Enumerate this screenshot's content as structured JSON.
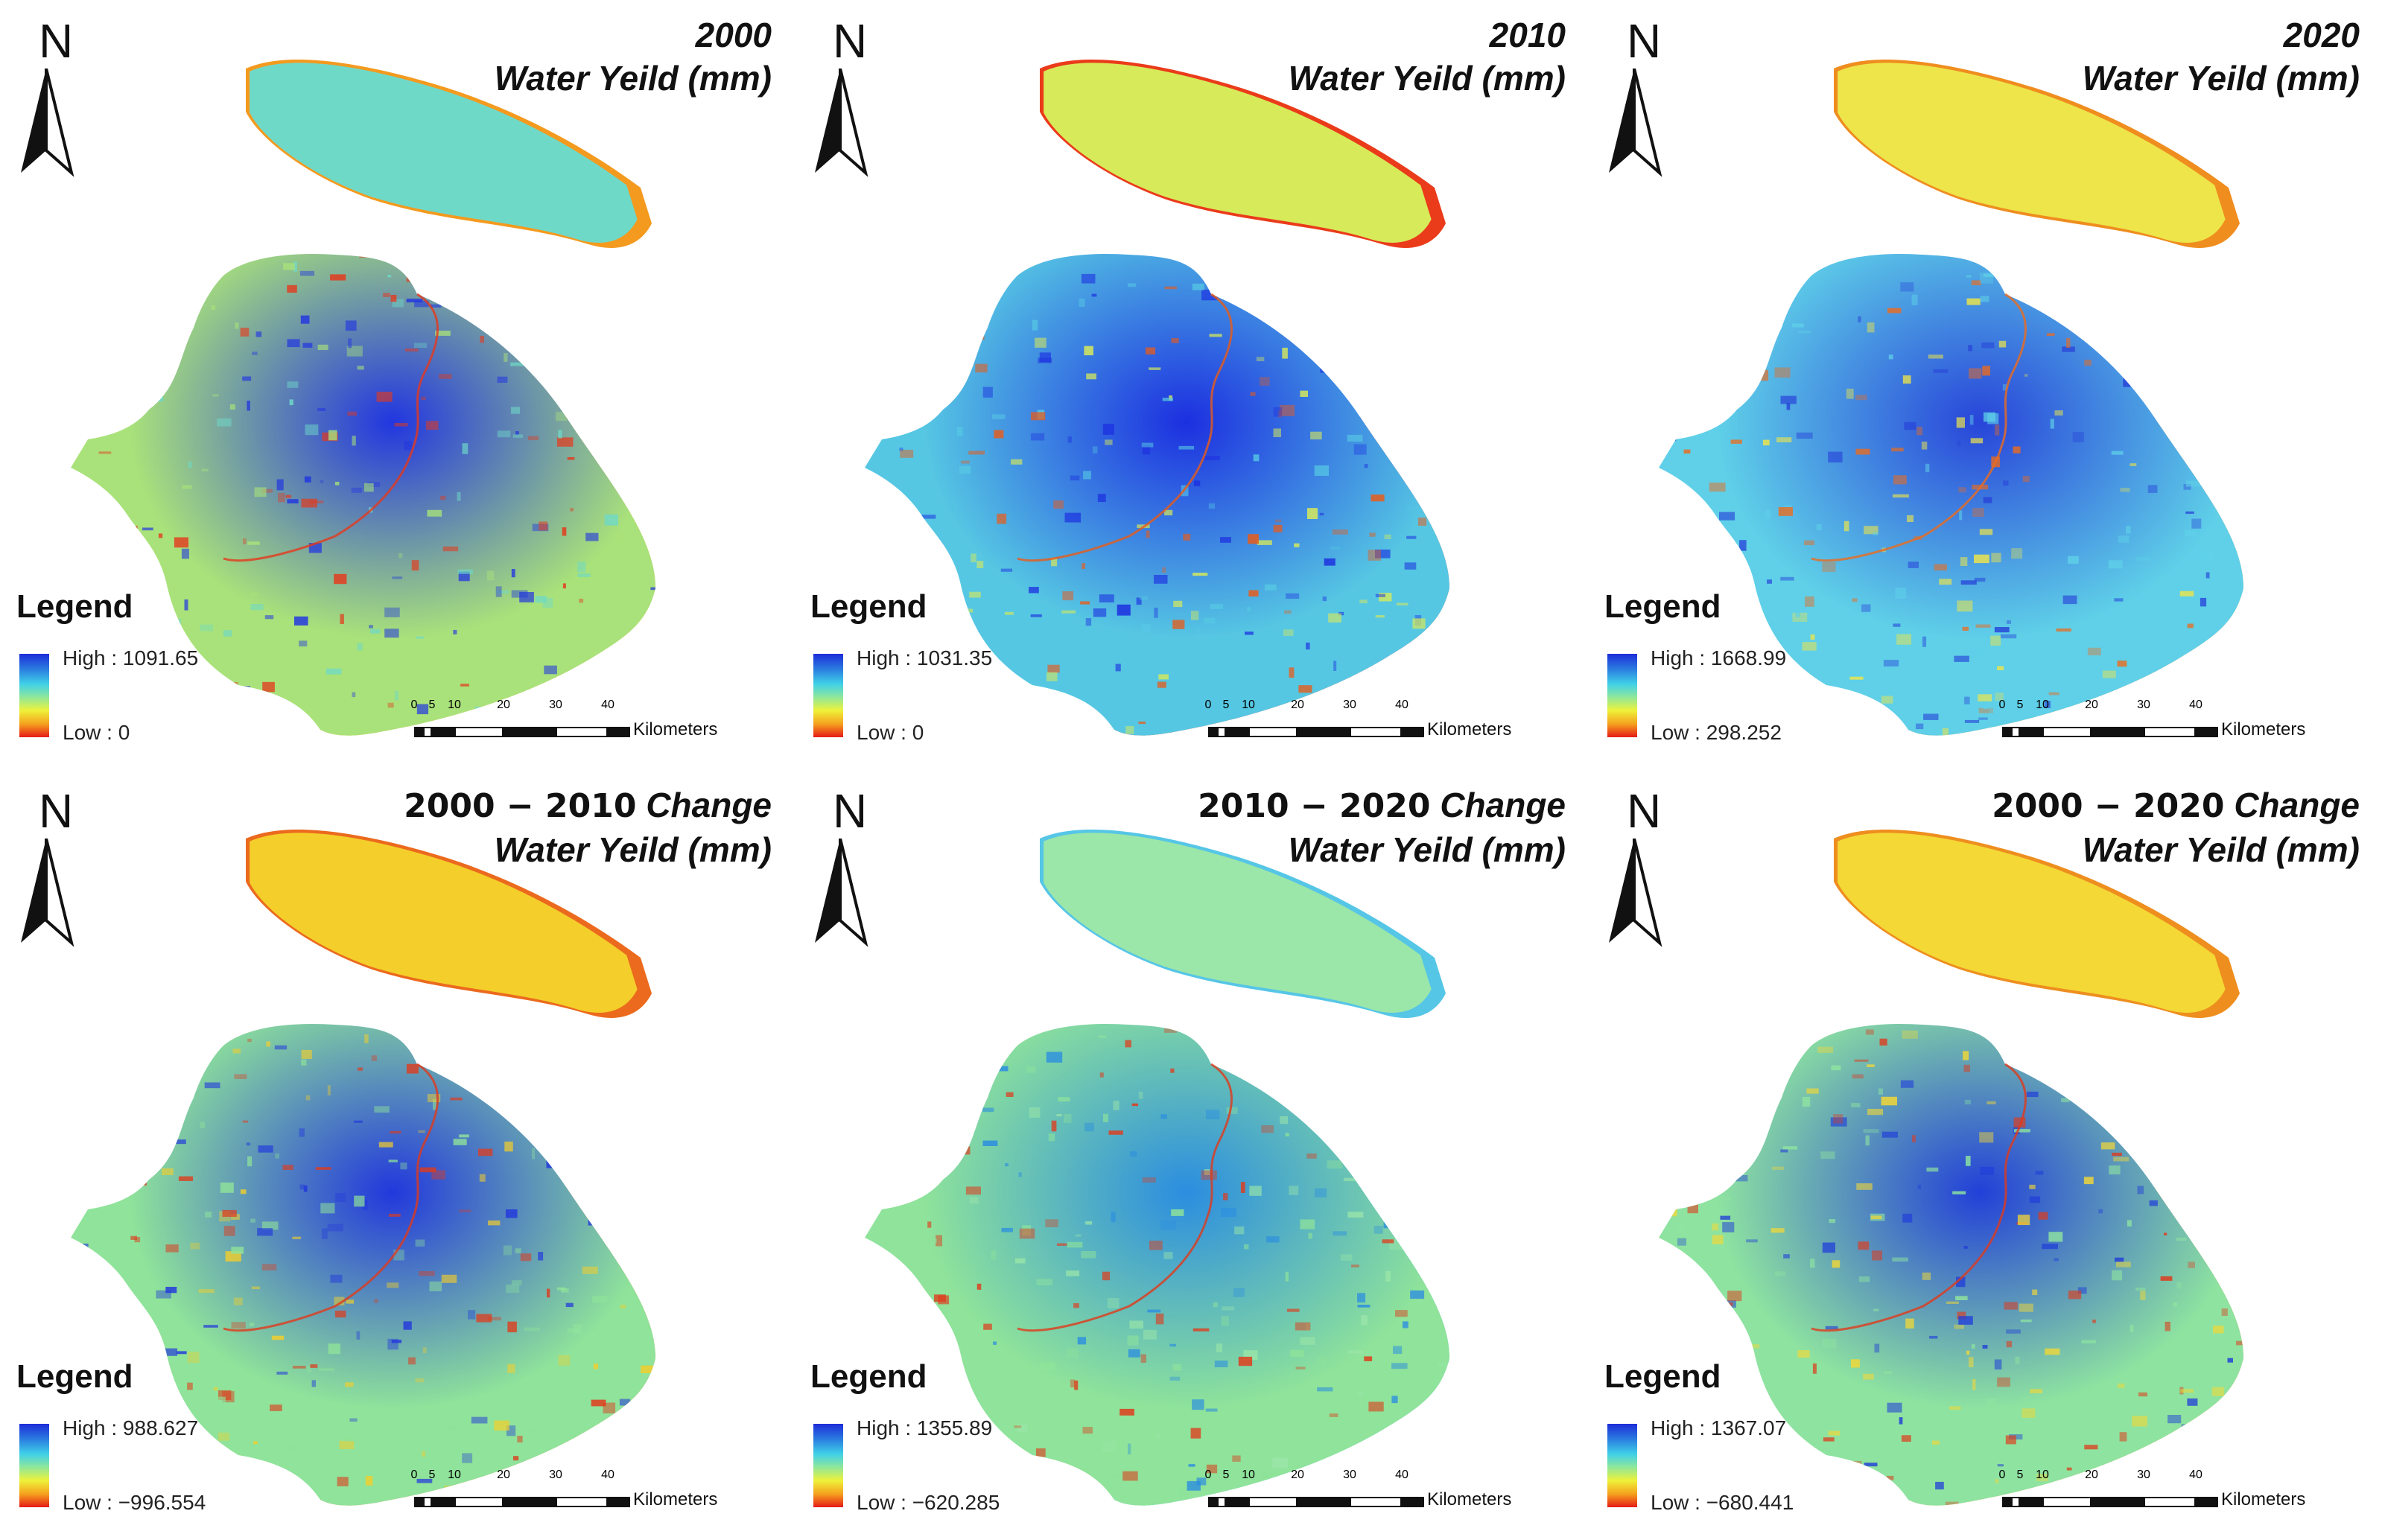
{
  "north_label": "N",
  "scale": {
    "ticks": [
      "0",
      "5",
      "10",
      "20",
      "30",
      "40"
    ],
    "unit": "Kilometers"
  },
  "legend_ramp_colors": [
    "#1d2dd8",
    "#3fd0e8",
    "#8fe79a",
    "#eef23a",
    "#f5a21e",
    "#e51a17"
  ],
  "panels": [
    {
      "title_line1": "2000",
      "title_line2": "Water Yeild (mm)",
      "legend_title": "Legend",
      "legend_high": "High : 1091.65",
      "legend_low": "Low : 0",
      "palette": {
        "upper_bg": "#6fd9c8",
        "upper_edge": "#f39a1f",
        "main_bg": "#a9e27a",
        "hot": "#2236e0",
        "accent": "#e5381b"
      }
    },
    {
      "title_line1": "2010",
      "title_line2": "Water Yeild (mm)",
      "legend_title": "Legend",
      "legend_high": "High : 1031.35",
      "legend_low": "Low : 0",
      "palette": {
        "upper_bg": "#d7ea5a",
        "upper_edge": "#ea3b1a",
        "main_bg": "#56c7e3",
        "hot": "#1c2fe0",
        "accent": "#e95b18"
      }
    },
    {
      "title_line1": "2020",
      "title_line2": "Water Yeild (mm)",
      "legend_title": "Legend",
      "legend_high": "High : 1668.99",
      "legend_low": "Low : 298.252",
      "palette": {
        "upper_bg": "#ede54a",
        "upper_edge": "#ef8d1f",
        "main_bg": "#5fd0e8",
        "hot": "#2845d9",
        "accent": "#ec6b1d"
      }
    },
    {
      "title_line1": "2000 − 2010",
      "title_line1_suffix": "Change",
      "title_line2": "Water Yeild (mm)",
      "legend_title": "Legend",
      "legend_high": "High : 988.627",
      "legend_low": "Low : −996.554",
      "palette": {
        "upper_bg": "#f4ce2a",
        "upper_edge": "#eb6a1d",
        "main_bg": "#8fe39a",
        "hot": "#2238dc",
        "accent": "#e03a1b"
      }
    },
    {
      "title_line1": "2010 − 2020",
      "title_line1_suffix": "Change",
      "title_line2": "Water Yeild (mm)",
      "legend_title": "Legend",
      "legend_high": "High : 1355.89",
      "legend_low": "Low : −620.285",
      "palette": {
        "upper_bg": "#9be6a9",
        "upper_edge": "#56c6e6",
        "main_bg": "#8fe39a",
        "hot": "#2b8de0",
        "accent": "#e03a1b"
      }
    },
    {
      "title_line1": "2000 − 2020",
      "title_line1_suffix": "Change",
      "title_line2": "Water Yeild (mm)",
      "legend_title": "Legend",
      "legend_high": "High : 1367.07",
      "legend_low": "Low :  −680.441",
      "palette": {
        "upper_bg": "#f4d835",
        "upper_edge": "#ee8e1f",
        "main_bg": "#8ee3a0",
        "hot": "#2240d8",
        "accent": "#e03a1b"
      }
    }
  ]
}
